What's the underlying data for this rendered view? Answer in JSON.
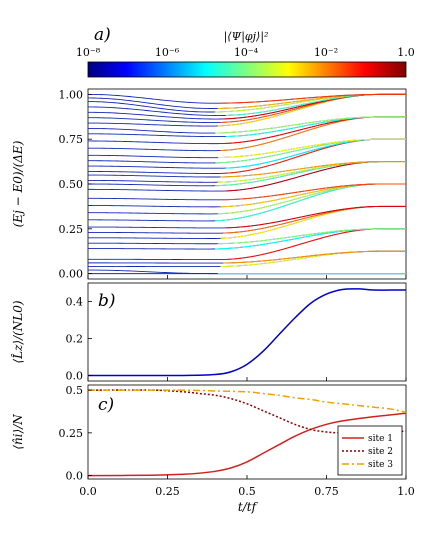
{
  "figure": {
    "colorbar": {
      "label": "|⟨Ψ|φj⟩|²",
      "ticks": [
        "10⁻⁸",
        "10⁻⁶",
        "10⁻⁴",
        "10⁻²",
        "1.0"
      ],
      "colormap": [
        "#00007f",
        "#0000ff",
        "#007fff",
        "#00ffff",
        "#7fff7f",
        "#ffff00",
        "#ff7f00",
        "#ff0000",
        "#7f0000"
      ]
    },
    "x_ticks": [
      "0.0",
      "0.25",
      "0.5",
      "0.75",
      "1.0"
    ],
    "xlabel": "t/tf"
  },
  "chart_data": [
    {
      "panel": "a)",
      "type": "line",
      "ylabel": "(Ej − E0)/(ΔE)",
      "xlim": [
        0,
        1
      ],
      "ylim": [
        -0.03,
        1.03
      ],
      "y_ticks": [
        "0.00",
        "0.25",
        "0.50",
        "0.75",
        "1.00"
      ],
      "description_levels": "many energy levels colored by overlap",
      "level_endpoints_start": [
        0.0,
        0.02,
        0.04,
        0.06,
        0.08,
        0.14,
        0.17,
        0.2,
        0.23,
        0.26,
        0.3,
        0.34,
        0.38,
        0.42,
        0.47,
        0.5,
        0.52,
        0.55,
        0.57,
        0.6,
        0.63,
        0.66,
        0.7,
        0.74,
        0.78,
        0.81,
        0.84,
        0.87,
        0.9,
        0.93,
        0.96,
        0.98,
        1.0
      ],
      "level_endpoints_end": [
        0.0,
        0.0,
        0.125,
        0.125,
        0.25,
        0.25,
        0.25,
        0.375,
        0.375,
        0.375,
        0.5,
        0.5,
        0.5,
        0.5,
        0.625,
        0.625,
        0.625,
        0.625,
        0.75,
        0.75,
        0.75,
        0.75,
        0.875,
        0.875,
        0.875,
        0.875,
        1.0,
        1.0,
        1.0,
        1.0,
        1.0,
        1.0,
        1.0
      ],
      "level_mins": [
        0.03,
        0.06,
        0.1,
        0.14,
        0.18,
        0.22,
        0.26,
        0.3,
        0.33,
        0.36,
        0.4,
        0.44,
        0.48,
        0.5,
        0.53,
        0.55,
        0.57,
        0.58,
        0.6,
        0.62,
        0.64,
        0.66,
        0.7,
        0.74,
        0.78,
        0.8,
        0.84,
        0.86,
        0.88,
        0.9,
        0.92,
        0.94,
        0.97
      ]
    },
    {
      "panel": "b)",
      "type": "line",
      "ylabel": "⟨L̂z⟩/(NL0)",
      "xlim": [
        0,
        1
      ],
      "ylim": [
        -0.03,
        0.5
      ],
      "y_ticks": [
        "0.0",
        "0.2",
        "0.4"
      ],
      "series": [
        {
          "name": "",
          "color": "#0000c8",
          "x": [
            0,
            0.3,
            0.4,
            0.45,
            0.5,
            0.55,
            0.6,
            0.65,
            0.7,
            0.75,
            0.8,
            0.85,
            0.9,
            0.95,
            1.0
          ],
          "y": [
            0,
            0.0,
            0.005,
            0.02,
            0.06,
            0.13,
            0.22,
            0.31,
            0.39,
            0.44,
            0.465,
            0.468,
            0.462,
            0.462,
            0.462
          ]
        }
      ]
    },
    {
      "panel": "c)",
      "type": "line",
      "ylabel": "⟨n̂i⟩/N",
      "xlim": [
        0,
        1
      ],
      "ylim": [
        -0.02,
        0.53
      ],
      "y_ticks": [
        "0.0",
        "0.25",
        "0.5"
      ],
      "series": [
        {
          "name": "site 1",
          "color": "#d42020",
          "dash": "solid",
          "x": [
            0,
            0.2,
            0.3,
            0.35,
            0.4,
            0.45,
            0.5,
            0.55,
            0.6,
            0.65,
            0.7,
            0.75,
            0.8,
            0.9,
            1.0
          ],
          "y": [
            0.0,
            0.002,
            0.008,
            0.014,
            0.025,
            0.045,
            0.08,
            0.13,
            0.18,
            0.23,
            0.27,
            0.3,
            0.32,
            0.345,
            0.365
          ]
        },
        {
          "name": "site 2",
          "color": "#8b0000",
          "dash": "2,2",
          "x": [
            0,
            0.2,
            0.3,
            0.35,
            0.4,
            0.45,
            0.5,
            0.55,
            0.6,
            0.65,
            0.7,
            0.75,
            0.8,
            0.9,
            1.0
          ],
          "y": [
            0.5,
            0.5,
            0.49,
            0.48,
            0.47,
            0.45,
            0.42,
            0.38,
            0.34,
            0.3,
            0.27,
            0.255,
            0.25,
            0.255,
            0.26
          ]
        },
        {
          "name": "site 3",
          "color": "#f0a000",
          "dash": "7,3,2,3",
          "x": [
            0,
            0.2,
            0.3,
            0.4,
            0.5,
            0.55,
            0.6,
            0.65,
            0.7,
            0.75,
            0.8,
            0.85,
            0.9,
            0.95,
            1.0
          ],
          "y": [
            0.5,
            0.5,
            0.5,
            0.495,
            0.49,
            0.48,
            0.47,
            0.455,
            0.445,
            0.43,
            0.42,
            0.41,
            0.4,
            0.39,
            0.37
          ]
        }
      ],
      "legend": {
        "position": "bottom-right"
      }
    }
  ]
}
